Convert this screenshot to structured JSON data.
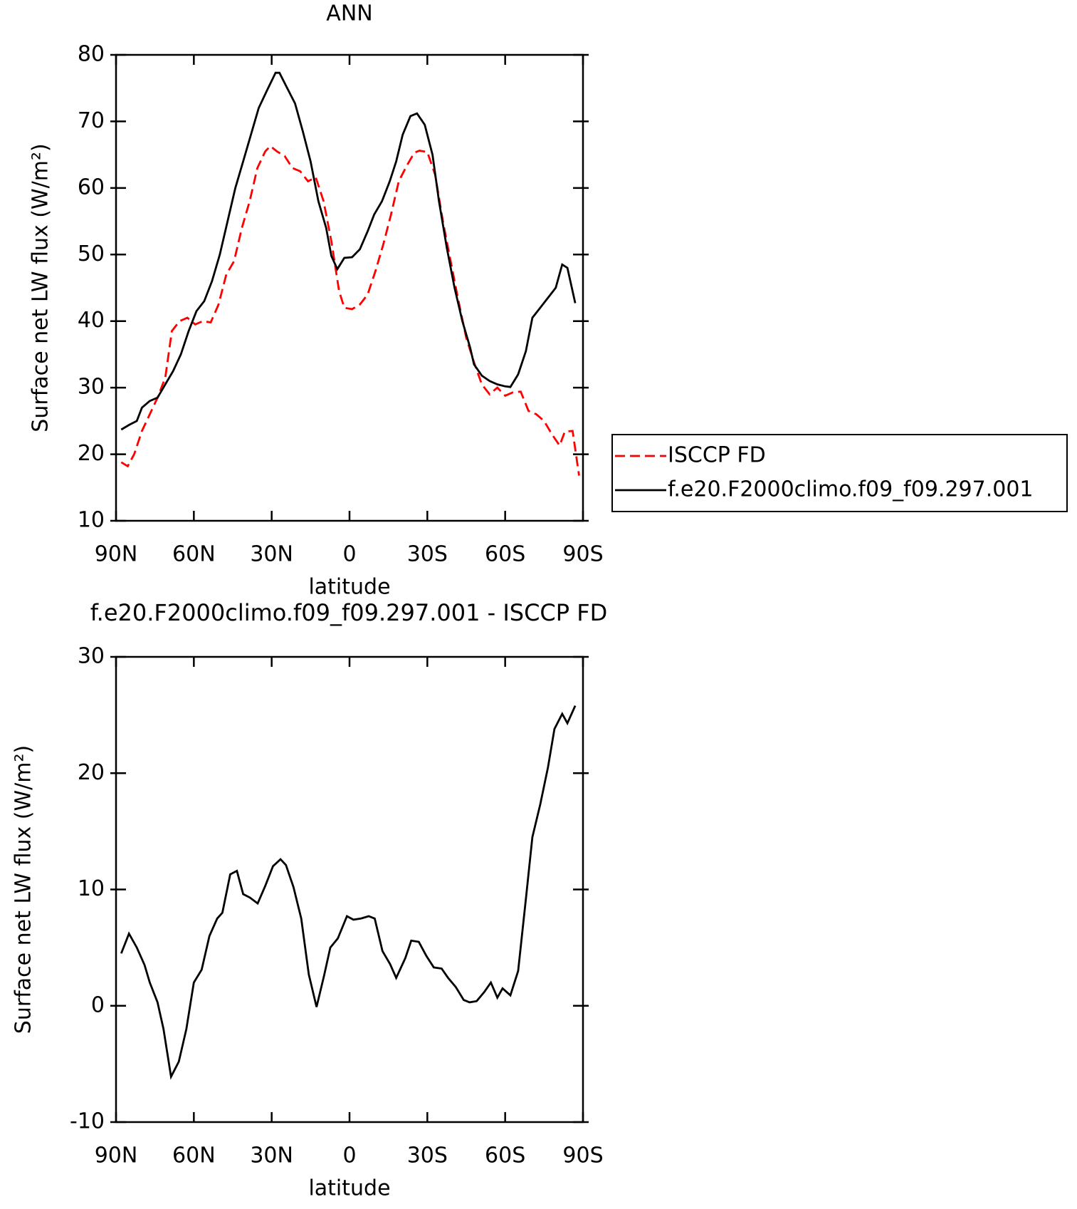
{
  "chart_data": [
    {
      "type": "line",
      "title": "ANN",
      "x_label": "latitude",
      "y_label": "Surface net LW flux (W/m²)",
      "xlim": [
        90,
        -90
      ],
      "ylim": [
        10,
        80
      ],
      "xticks": [
        {
          "value": 90,
          "label": "90N"
        },
        {
          "value": 60,
          "label": "60N"
        },
        {
          "value": 30,
          "label": "30N"
        },
        0,
        {
          "value": -30,
          "label": "30S"
        },
        {
          "value": -60,
          "label": "60S"
        },
        {
          "value": -90,
          "label": "90S"
        }
      ],
      "yticks": [
        10,
        20,
        30,
        40,
        50,
        60,
        70,
        80
      ],
      "legend": "right",
      "series": [
        {
          "name": "ISCCP FD",
          "color": "#ff0000",
          "dash": true,
          "x": [
            88,
            85.5,
            83,
            80,
            77,
            74,
            71,
            68.5,
            65.5,
            62.5,
            59.5,
            56.5,
            53.5,
            50.5,
            47.5,
            44.5,
            41.5,
            38.5,
            35.5,
            32.5,
            30.5,
            28,
            25,
            22,
            19,
            16,
            13,
            10,
            7,
            4,
            2,
            -1,
            -4,
            -7,
            -10,
            -13,
            -16,
            -19,
            -22,
            -25,
            -27,
            -30,
            -33,
            -36,
            -39,
            -42,
            -45,
            -48,
            -51,
            -54,
            -57,
            -60,
            -63,
            -66,
            -69,
            -72,
            -75,
            -78,
            -81,
            -83,
            -86,
            -88.5
          ],
          "values": [
            18.8,
            18.2,
            20,
            23.5,
            26,
            28.5,
            31.5,
            38.5,
            40,
            40.5,
            39.5,
            40,
            39.8,
            42.5,
            47,
            49,
            54,
            58,
            63,
            65.5,
            66.3,
            65.5,
            64.8,
            63,
            62.5,
            61,
            61.6,
            58,
            52,
            44.5,
            42,
            41.8,
            42.5,
            44,
            47.5,
            51.5,
            56,
            61,
            63.3,
            65.3,
            65.6,
            65.4,
            62,
            55,
            49,
            43,
            37.5,
            33.8,
            30.5,
            29,
            30,
            28.8,
            29.3,
            29.4,
            26.5,
            26,
            25,
            23,
            21.3,
            23.4,
            23.5,
            16.8
          ]
        },
        {
          "name": "f.e20.F2000climo.f09_f09.297.001",
          "color": "#000000",
          "dash": false,
          "x": [
            88,
            85,
            82,
            80,
            77,
            74,
            71,
            68,
            65,
            62,
            59,
            56,
            53,
            50,
            47,
            44,
            41,
            38,
            35,
            32,
            28.5,
            27,
            24,
            21,
            18,
            15,
            12,
            9,
            7,
            4.7,
            2,
            -1,
            -4,
            -7,
            -9.5,
            -12.5,
            -15.5,
            -18,
            -20.5,
            -23.5,
            -26,
            -29,
            -32,
            -34.5,
            -37.5,
            -40.5,
            -43.5,
            -46.5,
            -48,
            -51,
            -54,
            -57,
            -60,
            -62,
            -65,
            -68,
            -70.5,
            -73.5,
            -76.5,
            -79.5,
            -82,
            -84,
            -87
          ],
          "values": [
            23.7,
            24.4,
            25,
            27,
            28,
            28.5,
            30.5,
            32.5,
            35,
            38.5,
            41.5,
            43,
            46,
            50,
            55,
            60,
            64,
            68,
            72,
            74.5,
            77.3,
            77.3,
            75,
            72.7,
            68.5,
            64,
            58,
            54,
            49.8,
            47.8,
            49.5,
            49.6,
            50.8,
            53.5,
            56,
            58,
            61,
            64,
            68,
            70.8,
            71.2,
            69.5,
            65,
            58,
            51,
            45,
            40,
            36,
            33.5,
            31.8,
            31,
            30.5,
            30.2,
            30.1,
            32,
            35.5,
            40.5,
            42,
            43.5,
            45,
            48.5,
            48,
            42.7
          ]
        }
      ]
    },
    {
      "type": "line",
      "title": "f.e20.F2000climo.f09_f09.297.001 - ISCCP FD",
      "x_label": "latitude",
      "y_label": "Surface net LW flux (W/m²)",
      "xlim": [
        90,
        -90
      ],
      "ylim": [
        -10,
        30
      ],
      "xticks": [
        {
          "value": 90,
          "label": "90N"
        },
        {
          "value": 60,
          "label": "60N"
        },
        {
          "value": 30,
          "label": "30N"
        },
        0,
        {
          "value": -30,
          "label": "30S"
        },
        {
          "value": -60,
          "label": "60S"
        },
        {
          "value": -90,
          "label": "90S"
        }
      ],
      "yticks": [
        -10,
        0,
        10,
        20,
        30
      ],
      "series": [
        {
          "color": "#000000",
          "dash": false,
          "x": [
            88,
            85,
            82,
            79,
            77,
            74,
            71.7,
            68.8,
            65.8,
            62.9,
            60,
            57,
            54,
            51,
            49,
            46,
            43.4,
            41,
            38.4,
            35.4,
            32.5,
            29.5,
            26.6,
            24.5,
            21.6,
            18.6,
            15.7,
            12.7,
            9.8,
            7.4,
            4.5,
            1,
            -1.5,
            -4.4,
            -7.4,
            -9.7,
            -12.7,
            -15.6,
            -18,
            -21.5,
            -23.8,
            -26.7,
            -29.6,
            -32.5,
            -35.5,
            -38,
            -41,
            -44,
            -46.3,
            -49,
            -52,
            -54.5,
            -57,
            -59,
            -62,
            -65,
            -68,
            -70.5,
            -73.5,
            -76.5,
            -79,
            -82,
            -84,
            -87
          ],
          "values": [
            4.5,
            6.2,
            5,
            3.5,
            2,
            0.3,
            -2,
            -6.1,
            -4.8,
            -2,
            2,
            3.1,
            6,
            7.5,
            8,
            11.3,
            11.6,
            9.6,
            9.3,
            8.8,
            10.3,
            12,
            12.6,
            12.1,
            10.2,
            7.5,
            2.7,
            -0.1,
            2.6,
            5,
            5.8,
            7.7,
            7.4,
            7.5,
            7.7,
            7.5,
            4.7,
            3.6,
            2.4,
            4.1,
            5.6,
            5.5,
            4.3,
            3.3,
            3.2,
            2.4,
            1.6,
            0.5,
            0.3,
            0.4,
            1.2,
            2,
            0.7,
            1.5,
            0.9,
            3,
            9.2,
            14.5,
            17.3,
            20.5,
            23.8,
            25.1,
            24.3,
            25.8
          ]
        }
      ]
    }
  ]
}
